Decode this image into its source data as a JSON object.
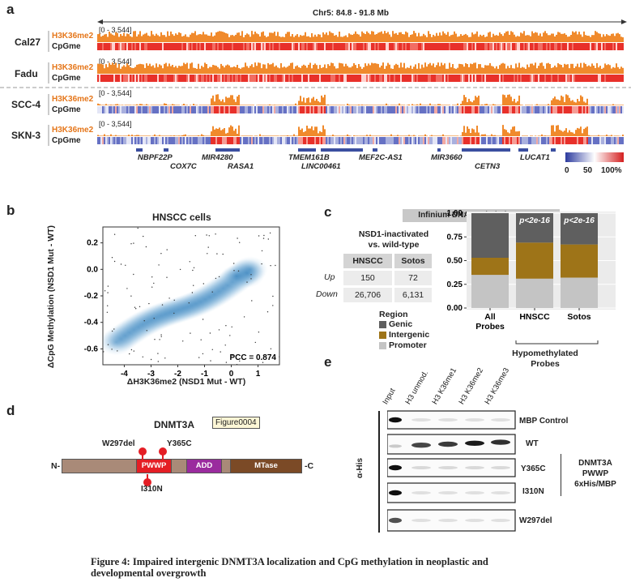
{
  "panel_a": {
    "label": "a",
    "region": "Chr5: 84.8 - 91.8 Mb",
    "range_label": "[0 - 3,544]",
    "samples": [
      {
        "name": "Cal27",
        "color": "#d62a2a",
        "tracks": [
          "H3K36me2",
          "CpGme"
        ]
      },
      {
        "name": "Fadu",
        "color": "#d62a2a",
        "tracks": [
          "H3K36me2",
          "CpGme"
        ]
      },
      {
        "name": "SCC-4",
        "color": "#2e4aa6",
        "tracks": [
          "H3K36me2",
          "CpGme"
        ]
      },
      {
        "name": "SKN-3",
        "color": "#2e4aa6",
        "tracks": [
          "H3K36me2",
          "CpGme"
        ]
      }
    ],
    "genes_row1": [
      "NBPF22P",
      "MIR4280",
      "TMEM161B",
      "MEF2C-AS1",
      "MIR3660",
      "LUCAT1"
    ],
    "genes_row2": [
      "COX7C",
      "RASA1",
      "LINC00461",
      "CETN3"
    ],
    "colorbar_labels": [
      "0",
      "50",
      "100%"
    ]
  },
  "panel_b": {
    "label": "b",
    "title": "HNSCC cells",
    "ylabel": "ΔCpG Methylation (NSD1 Mut - WT)",
    "xlabel": "ΔH3K36me2 (NSD1 Mut - WT)",
    "xticks": [
      "-4",
      "-3",
      "-2",
      "-1",
      "0",
      "1"
    ],
    "yticks": [
      "0.2",
      "0.0",
      "-0.2",
      "-0.4",
      "-0.6"
    ],
    "annotation": "PCC = 0.874"
  },
  "panel_c": {
    "label": "c",
    "header": "Infinium DNA Methylation Arrays",
    "table_title_line1": "NSD1-inactivated",
    "table_title_line2": "vs. wild-type",
    "columns": [
      "HNSCC",
      "Sotos"
    ],
    "rows": [
      {
        "label": "Up",
        "values": [
          "150",
          "72"
        ]
      },
      {
        "label": "Down",
        "values": [
          "26,706",
          "6,131"
        ]
      }
    ],
    "legend_title": "Region",
    "legend": [
      {
        "name": "Genic",
        "color": "#5f5f5f"
      },
      {
        "name": "Intergenic",
        "color": "#9e7418"
      },
      {
        "name": "Promoter",
        "color": "#c4c4c4"
      }
    ],
    "bracket_label_line1": "Hypomethylated",
    "bracket_label_line2": "Probes"
  },
  "chart_data": {
    "type": "bar",
    "stacked": true,
    "categories": [
      "All Probes",
      "HNSCC",
      "Sotos"
    ],
    "series": [
      {
        "name": "Promoter",
        "values": [
          0.35,
          0.31,
          0.32
        ]
      },
      {
        "name": "Intergenic",
        "values": [
          0.18,
          0.38,
          0.35
        ]
      },
      {
        "name": "Genic",
        "values": [
          0.47,
          0.31,
          0.33
        ]
      }
    ],
    "annotations": [
      "",
      "p<2e-16",
      "p<2e-16"
    ],
    "yticks": [
      "1.00",
      "0.75",
      "0.50",
      "0.25",
      "0.00"
    ],
    "ylim": [
      0,
      1
    ]
  },
  "panel_d": {
    "label": "d",
    "title": "DNMT3A",
    "tooltip": "Figure0004",
    "n_term": "N-",
    "c_term": "-C",
    "domains": [
      "PWWP",
      "ADD",
      "MTase"
    ],
    "mutations": [
      "W297del",
      "Y365C",
      "I310N"
    ]
  },
  "panel_e": {
    "label": "e",
    "lanes": [
      "Input",
      "H3 unmod.",
      "H3 K36me1",
      "H3 K36me2",
      "H3 K36me3"
    ],
    "blots": [
      "MBP Control",
      "WT",
      "Y365C",
      "I310N",
      "W297del"
    ],
    "axis_label": "α-His",
    "side_label": [
      "DNMT3A",
      "PWWP",
      "6xHis/MBP"
    ]
  },
  "caption": {
    "line1": "Figure 4: Impaired intergenic DNMT3A localization and CpG methylation in neoplastic and",
    "line2": "developmental overgrowth"
  }
}
